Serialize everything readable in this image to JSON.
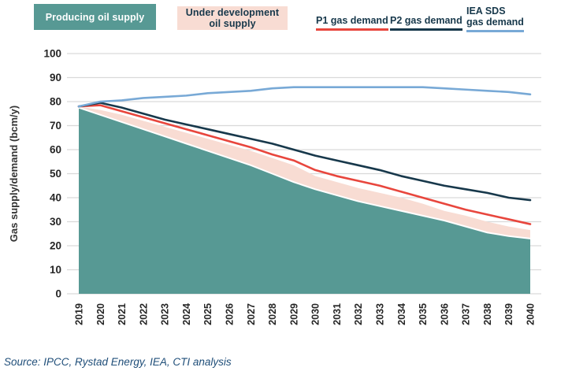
{
  "legend": {
    "producing_label": "Producing oil supply",
    "under_development_line1": "Under development",
    "under_development_line2": "oil supply",
    "p1_label": "P1 gas demand",
    "p2_label": "P2 gas demand",
    "iea_line1": "IEA SDS",
    "iea_line2": "gas demand"
  },
  "source_note": "Source: IPCC, Rystad Energy, IEA, CTI analysis",
  "colors": {
    "producing_area": "#579994",
    "under_development_area": "#f8dcd3",
    "p1_line": "#e8463d",
    "p2_line": "#17384b",
    "iea_line": "#78a9d6",
    "grid": "#d9d9d9",
    "tick_text": "#262626",
    "axis_label_text": "#333333",
    "legend_text_dark": "#17384b",
    "legend_text_light": "#ffffff",
    "source_text": "#1f4e79",
    "area_separator": "#ffffff"
  },
  "chart_data": {
    "type": "area+line",
    "title": "",
    "xlabel": "",
    "ylabel": "Gas supply/demand (bcm/y)",
    "ylim": [
      0,
      100
    ],
    "yticks": [
      0,
      10,
      20,
      30,
      40,
      50,
      60,
      70,
      80,
      90,
      100
    ],
    "grid": "horizontal",
    "legend_position": "top",
    "x": [
      2019,
      2020,
      2021,
      2022,
      2023,
      2024,
      2025,
      2026,
      2027,
      2028,
      2029,
      2030,
      2031,
      2032,
      2033,
      2034,
      2035,
      2036,
      2037,
      2038,
      2039,
      2040
    ],
    "series": [
      {
        "name": "Producing oil supply",
        "render": "area",
        "color": "#579994",
        "values": [
          77.5,
          74.5,
          71.5,
          68.5,
          65.5,
          62.5,
          59.5,
          56.5,
          53.5,
          50,
          46.5,
          43.5,
          41,
          38.5,
          36.5,
          34.5,
          32.5,
          30.5,
          28,
          25.5,
          24,
          23
        ]
      },
      {
        "name": "Under development oil supply",
        "render": "band",
        "stacking": "values_are_top_of_band_above_producing",
        "color": "#f8dcd3",
        "values": [
          78,
          76.5,
          74.5,
          72,
          69.5,
          67,
          64.5,
          62,
          59.5,
          56.5,
          53.5,
          49,
          46.5,
          44,
          42,
          40,
          37.5,
          34.5,
          32.5,
          30,
          28,
          26.5
        ]
      },
      {
        "name": "P1 gas demand",
        "render": "line",
        "color": "#e8463d",
        "values": [
          78,
          78.5,
          76,
          73.5,
          71,
          68.5,
          66,
          63.5,
          61,
          58,
          55.5,
          51.5,
          49,
          47,
          45,
          42.5,
          40,
          37.5,
          35,
          33,
          31,
          29
        ]
      },
      {
        "name": "P2 gas demand",
        "render": "line",
        "color": "#17384b",
        "values": [
          78,
          79.5,
          77.5,
          75,
          72.5,
          70.5,
          68.5,
          66.5,
          64.5,
          62.5,
          60,
          57.5,
          55.5,
          53.5,
          51.5,
          49,
          47,
          45,
          43.5,
          42,
          40,
          39
        ]
      },
      {
        "name": "IEA SDS gas demand",
        "render": "line",
        "color": "#78a9d6",
        "values": [
          78,
          80,
          80.5,
          81.5,
          82,
          82.5,
          83.5,
          84,
          84.5,
          85.5,
          86,
          86,
          86,
          86,
          86,
          86,
          86,
          85.5,
          85,
          84.5,
          84,
          83
        ]
      }
    ]
  }
}
